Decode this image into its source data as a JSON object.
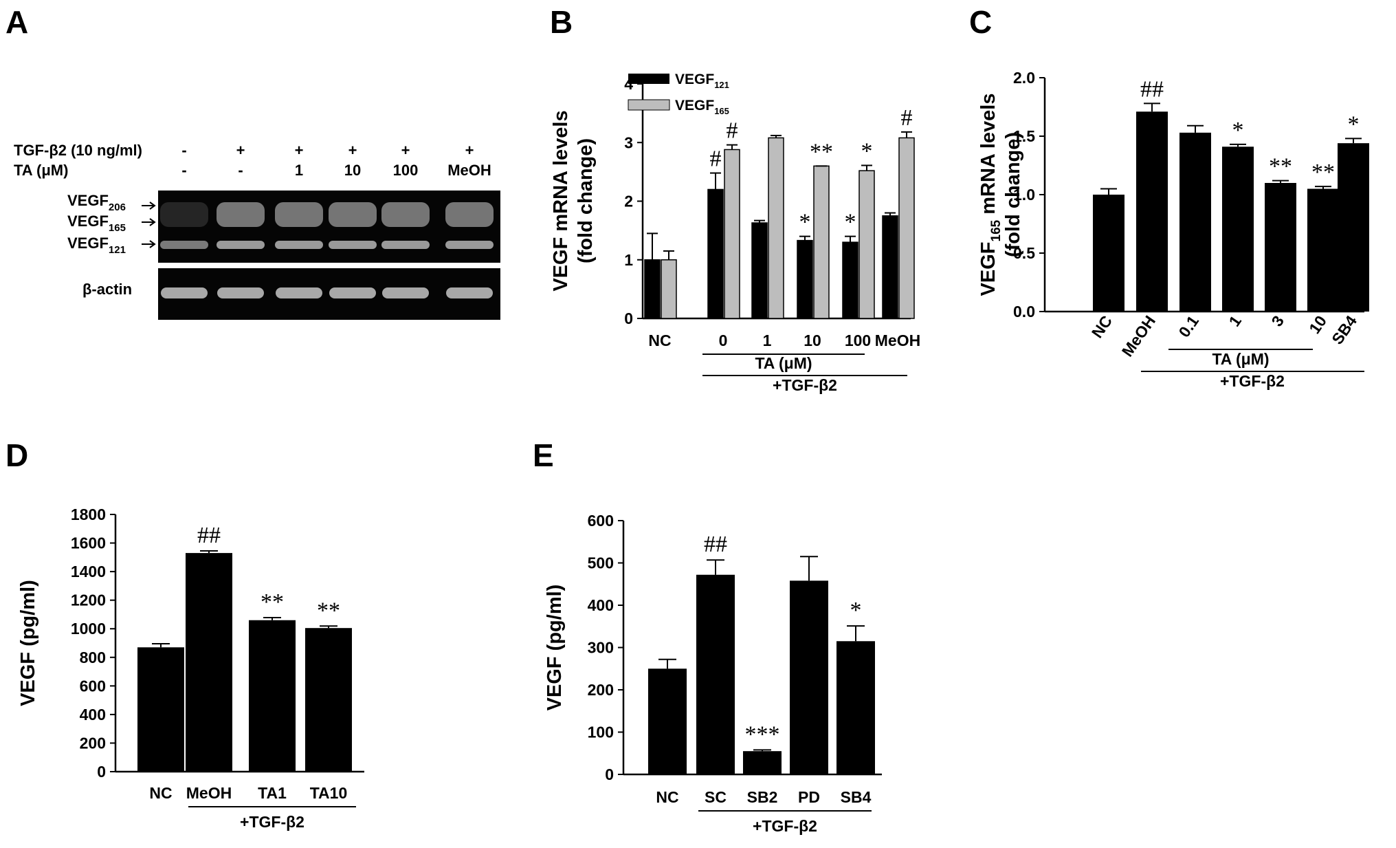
{
  "panels": [
    {
      "letter": "A"
    },
    {
      "letter": "B"
    },
    {
      "letter": "C"
    },
    {
      "letter": "D"
    },
    {
      "letter": "E"
    }
  ],
  "gel": {
    "row1_label": "TGF-β2 (10 ng/ml)",
    "row1_values": [
      "-",
      "+",
      "+",
      "+",
      "+",
      "+"
    ],
    "row2_label": "TA (μM)",
    "row2_values": [
      "-",
      "-",
      "1",
      "10",
      "100",
      "MeOH"
    ],
    "band_labels": [
      {
        "base": "VEGF",
        "sub": "206"
      },
      {
        "base": "VEGF",
        "sub": "165"
      },
      {
        "base": "VEGF",
        "sub": "121"
      }
    ],
    "actin_label": "β-actin"
  },
  "chart_data": [
    {
      "panel": "B",
      "type": "bar",
      "ylabel_lines": [
        "VEGF mRNA levels",
        "(fold change)"
      ],
      "ylim": [
        0,
        4
      ],
      "yticks": [
        0,
        1,
        2,
        3,
        4
      ],
      "categories": [
        "NC",
        "0",
        "1",
        "10",
        "100",
        "MeOH"
      ],
      "series": [
        {
          "name": "VEGF",
          "name_sub": "121",
          "color": "#000000",
          "values": [
            1.0,
            2.2,
            1.63,
            1.33,
            1.3,
            1.75
          ],
          "errors": [
            0.45,
            0.28,
            0.04,
            0.07,
            0.1,
            0.05
          ],
          "annotations": [
            "",
            "#",
            "",
            "*",
            "*",
            ""
          ]
        },
        {
          "name": "VEGF",
          "name_sub": "165",
          "color": "#bdbdbd",
          "values": [
            1.0,
            2.88,
            3.08,
            2.6,
            2.52,
            3.08
          ],
          "errors": [
            0.15,
            0.08,
            0.04,
            0.0,
            0.09,
            0.1
          ],
          "annotations": [
            "",
            "#",
            "",
            "**",
            "*",
            "#"
          ]
        }
      ],
      "groups": [
        {
          "label": "TA (μM)",
          "from": 1,
          "to": 4
        },
        {
          "label": "+TGF-β2",
          "from": 1,
          "to": 5
        }
      ]
    },
    {
      "panel": "C",
      "type": "bar",
      "ylabel_lines": [
        {
          "base": "VEGF",
          "sub": "165",
          "rest": " mRNA levels"
        },
        "(fold change)"
      ],
      "ylim": [
        0,
        2.0
      ],
      "yticks": [
        "0.0",
        "0.5",
        "1.0",
        "1.5",
        "2.0"
      ],
      "categories": [
        "NC",
        "MeOH",
        "0.1",
        "1",
        "3",
        "10",
        "SB4"
      ],
      "values": [
        1.0,
        1.71,
        1.53,
        1.41,
        1.1,
        1.05,
        1.44
      ],
      "errors": [
        0.05,
        0.07,
        0.06,
        0.02,
        0.02,
        0.02,
        0.04
      ],
      "annotations": [
        "",
        "##",
        "",
        "*",
        "**",
        "**",
        "*"
      ],
      "groups": [
        {
          "label": "TA (μM)",
          "from": 2,
          "to": 5
        },
        {
          "label": "+TGF-β2",
          "from": 1,
          "to": 6
        }
      ]
    },
    {
      "panel": "D",
      "type": "bar",
      "ylabel": "VEGF (pg/ml)",
      "ylim": [
        0,
        1800
      ],
      "yticks": [
        0,
        200,
        400,
        600,
        800,
        1000,
        1200,
        1400,
        1600,
        1800
      ],
      "categories": [
        "NC",
        "MeOH",
        "TA1",
        "TA10"
      ],
      "values": [
        870,
        1530,
        1060,
        1005
      ],
      "errors": [
        25,
        15,
        18,
        14
      ],
      "annotations": [
        "",
        "##",
        "**",
        "**"
      ],
      "groups": [
        {
          "label": "+TGF-β2",
          "from": 1,
          "to": 3
        }
      ]
    },
    {
      "panel": "E",
      "type": "bar",
      "ylabel": "VEGF (pg/ml)",
      "ylim": [
        0,
        600
      ],
      "yticks": [
        0,
        100,
        200,
        300,
        400,
        500,
        600
      ],
      "categories": [
        "NC",
        "SC",
        "SB2",
        "PD",
        "SB4"
      ],
      "values": [
        250,
        472,
        55,
        458,
        315
      ],
      "errors": [
        22,
        35,
        3,
        57,
        36
      ],
      "annotations": [
        "",
        "##",
        "***",
        "",
        "*"
      ],
      "groups": [
        {
          "label": "+TGF-β2",
          "from": 1,
          "to": 4
        }
      ]
    }
  ]
}
